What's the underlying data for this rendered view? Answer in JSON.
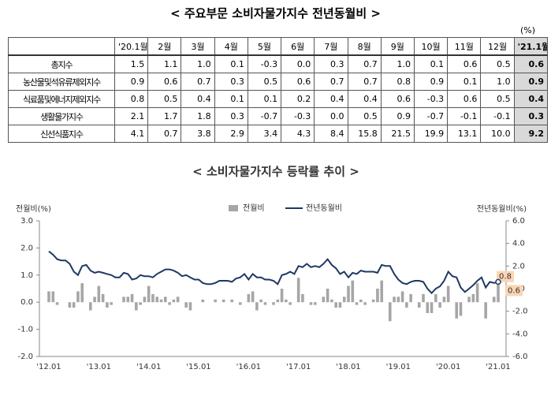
{
  "table": {
    "title": "< 주요부문 소비자물가지수 전년동월비 >",
    "unit": "(%)",
    "header": [
      "'20.1월",
      "2월",
      "3월",
      "4월",
      "5월",
      "6월",
      "7월",
      "8월",
      "9월",
      "10월",
      "11월",
      "12월",
      "'21.1월"
    ],
    "rows": [
      {
        "label": "총지수",
        "values": [
          "1.5",
          "1.1",
          "1.0",
          "0.1",
          "-0.3",
          "0.0",
          "0.3",
          "0.7",
          "1.0",
          "0.1",
          "0.6",
          "0.5",
          "0.6"
        ]
      },
      {
        "label": "농산물및석유류제외지수",
        "values": [
          "0.9",
          "0.6",
          "0.7",
          "0.3",
          "0.5",
          "0.6",
          "0.7",
          "0.7",
          "0.8",
          "0.9",
          "0.1",
          "1.0",
          "0.9"
        ]
      },
      {
        "label": "식료품및에너지제외지수",
        "values": [
          "0.8",
          "0.5",
          "0.4",
          "0.1",
          "0.1",
          "0.2",
          "0.4",
          "0.4",
          "0.6",
          "-0.3",
          "0.6",
          "0.5",
          "0.4"
        ]
      },
      {
        "label": "생활물가지수",
        "values": [
          "2.1",
          "1.7",
          "1.8",
          "0.3",
          "-0.7",
          "-0.3",
          "0.0",
          "0.5",
          "0.9",
          "-0.7",
          "-0.1",
          "-0.1",
          "0.3"
        ]
      },
      {
        "label": "신선식품지수",
        "values": [
          "4.1",
          "0.7",
          "3.8",
          "2.9",
          "3.4",
          "4.3",
          "8.4",
          "15.8",
          "21.5",
          "19.9",
          "13.1",
          "10.0",
          "9.2"
        ]
      }
    ]
  },
  "chart_data": {
    "type": "combo",
    "title": "< 소비자물가지수 등락률 추이 >",
    "ylabel": "전월비(%)",
    "y2label": "전년동월비(%)",
    "ylim": [
      -2,
      3
    ],
    "yticks": [
      {
        "value": 3,
        "label": "3.0"
      },
      {
        "value": 2,
        "label": "2.0"
      },
      {
        "value": 1,
        "label": "1.0"
      },
      {
        "value": 0,
        "label": "0.0"
      },
      {
        "value": -1,
        "label": "-1.0"
      },
      {
        "value": -2,
        "label": "-2.0"
      }
    ],
    "y2lim": [
      -6,
      6
    ],
    "y2ticks": [
      {
        "value": 6,
        "label": "6.0"
      },
      {
        "value": 4,
        "label": "4.0"
      },
      {
        "value": 2,
        "label": "2.0"
      },
      {
        "value": 0,
        "label": "0.0"
      },
      {
        "value": -2,
        "label": "-2.0"
      },
      {
        "value": -4,
        "label": "-4.0"
      },
      {
        "value": -6,
        "label": "-6.0"
      }
    ],
    "categories": [
      "'12.01",
      null,
      null,
      null,
      null,
      null,
      null,
      null,
      null,
      null,
      null,
      null,
      "'13.01",
      null,
      null,
      null,
      null,
      null,
      null,
      null,
      null,
      null,
      null,
      null,
      "'14.01",
      null,
      null,
      null,
      null,
      null,
      null,
      null,
      null,
      null,
      null,
      null,
      "'15.01",
      null,
      null,
      null,
      null,
      null,
      null,
      null,
      null,
      null,
      null,
      null,
      "'16.01",
      null,
      null,
      null,
      null,
      null,
      null,
      null,
      null,
      null,
      null,
      null,
      "'17.01",
      null,
      null,
      null,
      null,
      null,
      null,
      null,
      null,
      null,
      null,
      null,
      "'18.01",
      null,
      null,
      null,
      null,
      null,
      null,
      null,
      null,
      null,
      null,
      null,
      "'19.01",
      null,
      null,
      null,
      null,
      null,
      null,
      null,
      null,
      null,
      null,
      null,
      "'20.01",
      null,
      null,
      null,
      null,
      null,
      null,
      null,
      null,
      null,
      null,
      null,
      "'21.01"
    ],
    "series": [
      {
        "name": "전월비",
        "color": "#a6a6a6",
        "kind": "bar",
        "values": [
          0.4,
          0.4,
          -0.1,
          0.0,
          0.0,
          -0.2,
          -0.2,
          0.4,
          0.7,
          0.0,
          -0.3,
          0.2,
          0.6,
          0.3,
          -0.2,
          -0.1,
          0.0,
          0.0,
          0.2,
          0.2,
          0.3,
          -0.3,
          -0.1,
          0.2,
          0.6,
          0.3,
          0.2,
          0.1,
          0.2,
          -0.1,
          0.1,
          0.2,
          0.0,
          -0.2,
          -0.3,
          0.0,
          0.0,
          0.1,
          0.0,
          0.0,
          0.1,
          0.0,
          0.1,
          0.0,
          0.1,
          0.0,
          -0.1,
          0.0,
          0.3,
          0.4,
          -0.3,
          0.1,
          -0.1,
          0.0,
          -0.1,
          0.1,
          0.5,
          0.1,
          -0.1,
          0.0,
          0.9,
          0.3,
          0.0,
          -0.1,
          -0.1,
          0.0,
          0.2,
          0.5,
          0.1,
          -0.2,
          -0.2,
          0.2,
          0.6,
          0.8,
          -0.1,
          0.1,
          -0.1,
          0.0,
          0.1,
          0.5,
          0.8,
          0.0,
          -0.7,
          0.2,
          0.2,
          0.4,
          -0.2,
          0.3,
          0.0,
          -0.2,
          0.3,
          -0.4,
          -0.4,
          0.3,
          -0.2,
          0.2,
          0.6,
          0.0,
          -0.6,
          -0.5,
          0.0,
          0.2,
          0.3,
          0.7,
          0.0,
          -0.6,
          0.0,
          0.2,
          0.8
        ],
        "value_labels": [
          null,
          null,
          null,
          null,
          null,
          null,
          null,
          null,
          null,
          null,
          null,
          null,
          null,
          null,
          null,
          null,
          null,
          null,
          null,
          null,
          null,
          null,
          null,
          null,
          null,
          null,
          null,
          null,
          null,
          null,
          null,
          null,
          null,
          null,
          null,
          null,
          null,
          null,
          null,
          null,
          null,
          null,
          null,
          null,
          null,
          null,
          null,
          null,
          null,
          null,
          null,
          null,
          null,
          null,
          null,
          null,
          null,
          null,
          null,
          null,
          null,
          null,
          null,
          null,
          null,
          null,
          null,
          null,
          null,
          null,
          null,
          null,
          null,
          null,
          null,
          null,
          null,
          null,
          null,
          null,
          null,
          null,
          null,
          null,
          null,
          null,
          null,
          null,
          null,
          null,
          null,
          null,
          null,
          null,
          null,
          null,
          null,
          null,
          null,
          null,
          null,
          null,
          null,
          null,
          null,
          null,
          null,
          null,
          "0.8"
        ]
      },
      {
        "name": "전년동월비",
        "color": "#1f3864",
        "kind": "line",
        "axis": "y2",
        "values": [
          3.3,
          3.0,
          2.6,
          2.5,
          2.5,
          2.2,
          1.5,
          1.2,
          2.0,
          2.1,
          1.6,
          1.4,
          1.5,
          1.4,
          1.3,
          1.2,
          1.0,
          1.0,
          1.4,
          1.3,
          0.8,
          0.9,
          1.2,
          1.1,
          1.1,
          1.0,
          1.3,
          1.5,
          1.7,
          1.7,
          1.6,
          1.4,
          1.1,
          1.2,
          1.0,
          0.8,
          0.8,
          0.5,
          0.4,
          0.4,
          0.5,
          0.7,
          0.7,
          0.7,
          0.6,
          0.9,
          1.0,
          1.3,
          0.8,
          1.3,
          1.0,
          1.0,
          0.8,
          0.8,
          0.7,
          0.4,
          1.2,
          1.3,
          1.5,
          1.3,
          2.0,
          1.9,
          2.2,
          1.9,
          2.0,
          1.9,
          2.2,
          2.6,
          2.1,
          1.8,
          1.3,
          1.5,
          1.0,
          1.4,
          1.3,
          1.6,
          1.5,
          1.5,
          1.5,
          1.4,
          2.1,
          2.0,
          2.0,
          1.3,
          0.8,
          0.5,
          0.4,
          0.6,
          0.7,
          0.7,
          0.6,
          0.0,
          -0.4,
          0.0,
          0.2,
          0.7,
          1.5,
          1.1,
          1.0,
          0.1,
          -0.3,
          0.0,
          0.3,
          0.7,
          1.0,
          0.1,
          0.6,
          0.5,
          0.6
        ],
        "value_labels": [
          null,
          null,
          null,
          null,
          null,
          null,
          null,
          null,
          null,
          null,
          null,
          null,
          null,
          null,
          null,
          null,
          null,
          null,
          null,
          null,
          null,
          null,
          null,
          null,
          null,
          null,
          null,
          null,
          null,
          null,
          null,
          null,
          null,
          null,
          null,
          null,
          null,
          null,
          null,
          null,
          null,
          null,
          null,
          null,
          null,
          null,
          null,
          null,
          null,
          null,
          null,
          null,
          null,
          null,
          null,
          null,
          null,
          null,
          null,
          null,
          null,
          null,
          null,
          null,
          null,
          null,
          null,
          null,
          null,
          null,
          null,
          null,
          null,
          null,
          null,
          null,
          null,
          null,
          null,
          null,
          null,
          null,
          null,
          null,
          null,
          null,
          null,
          null,
          null,
          null,
          null,
          null,
          null,
          null,
          null,
          null,
          null,
          null,
          null,
          null,
          null,
          null,
          null,
          null,
          null,
          null,
          null,
          null,
          "0.6"
        ]
      }
    ]
  }
}
